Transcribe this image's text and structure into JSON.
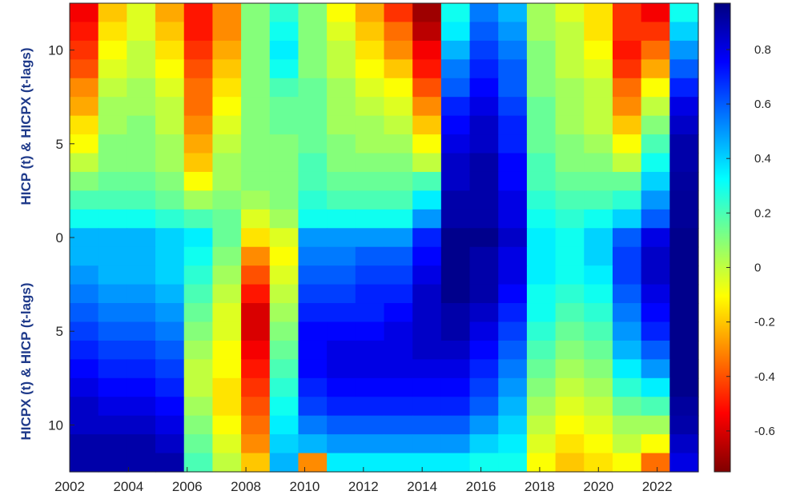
{
  "chart_data": {
    "type": "heatmap",
    "colormap": "jet",
    "x_ticks": [
      "2002",
      "2004",
      "2006",
      "2008",
      "2010",
      "2012",
      "2014",
      "2016",
      "2018",
      "2020",
      "2022"
    ],
    "xlim": [
      2002,
      2023.4
    ],
    "y_ticks_upper": [
      "10",
      "5",
      "0"
    ],
    "y_ticks_lower": [
      "5",
      "10"
    ],
    "ylabel_upper": "HICP (t) & HICPX (t-lags)",
    "ylabel_lower": "HICPX (t) & HICP (t-lags)",
    "colorbar": {
      "range": [
        -0.75,
        0.97
      ],
      "ticks": [
        "0.8",
        "0.6",
        "0.4",
        "0.2",
        "0",
        "-0.2",
        "-0.4",
        "-0.6"
      ]
    },
    "rows_upper_lags": [
      12,
      11,
      10,
      9,
      8,
      7,
      6,
      5,
      4,
      3,
      2,
      1,
      0
    ],
    "rows_lower_lags": [
      1,
      2,
      3,
      4,
      5,
      6,
      7,
      8,
      9,
      10,
      11,
      12
    ],
    "years": [
      2002,
      2003,
      2004,
      2005,
      2006,
      2007,
      2008,
      2009,
      2010,
      2011,
      2012,
      2013,
      2014,
      2015,
      2016,
      2017,
      2018,
      2019,
      2020,
      2021,
      2022,
      2023
    ],
    "values": [
      [
        -0.55,
        -0.2,
        -0.05,
        -0.25,
        -0.5,
        -0.3,
        0.1,
        0.25,
        0.1,
        -0.1,
        -0.25,
        -0.45,
        -0.7,
        0.3,
        0.55,
        0.45,
        0.05,
        -0.05,
        -0.15,
        -0.45,
        -0.55,
        0.3
      ],
      [
        -0.5,
        -0.15,
        -0.05,
        -0.2,
        -0.5,
        -0.3,
        0.1,
        0.3,
        0.1,
        -0.05,
        -0.2,
        -0.35,
        -0.65,
        0.35,
        0.6,
        0.5,
        0.05,
        0.0,
        -0.15,
        -0.45,
        -0.45,
        0.4
      ],
      [
        -0.45,
        -0.1,
        0.0,
        -0.15,
        -0.45,
        -0.25,
        0.1,
        0.35,
        0.1,
        0.0,
        -0.15,
        -0.3,
        -0.55,
        0.45,
        0.65,
        0.55,
        0.1,
        0.0,
        -0.1,
        -0.5,
        -0.35,
        0.5
      ],
      [
        -0.4,
        -0.05,
        0.0,
        -0.1,
        -0.4,
        -0.2,
        0.1,
        0.3,
        0.1,
        0.0,
        -0.1,
        -0.2,
        -0.5,
        0.55,
        0.7,
        0.6,
        0.1,
        0.0,
        -0.05,
        -0.45,
        -0.25,
        0.6
      ],
      [
        -0.3,
        0.0,
        0.05,
        -0.05,
        -0.35,
        -0.15,
        0.1,
        0.2,
        0.15,
        0.05,
        -0.05,
        -0.1,
        -0.4,
        0.6,
        0.75,
        0.6,
        0.1,
        0.05,
        0.0,
        -0.35,
        -0.1,
        0.7
      ],
      [
        -0.25,
        0.05,
        0.05,
        0.0,
        -0.35,
        -0.1,
        0.1,
        0.15,
        0.15,
        0.05,
        0.0,
        -0.05,
        -0.3,
        0.7,
        0.8,
        0.65,
        0.15,
        0.05,
        0.0,
        -0.3,
        0.0,
        0.8
      ],
      [
        -0.15,
        0.05,
        0.1,
        0.0,
        -0.3,
        -0.05,
        0.1,
        0.15,
        0.15,
        0.05,
        0.05,
        0.0,
        -0.2,
        0.75,
        0.85,
        0.7,
        0.15,
        0.05,
        0.0,
        -0.2,
        0.1,
        0.85
      ],
      [
        -0.1,
        0.1,
        0.1,
        0.05,
        -0.25,
        0.0,
        0.1,
        0.1,
        0.15,
        0.1,
        0.05,
        0.05,
        -0.1,
        0.8,
        0.85,
        0.7,
        0.15,
        0.1,
        0.05,
        -0.1,
        0.2,
        0.9
      ],
      [
        0.0,
        0.1,
        0.1,
        0.05,
        -0.2,
        0.05,
        0.1,
        0.1,
        0.2,
        0.1,
        0.1,
        0.1,
        0.0,
        0.85,
        0.9,
        0.75,
        0.2,
        0.1,
        0.1,
        0.0,
        0.3,
        0.9
      ],
      [
        0.1,
        0.15,
        0.15,
        0.1,
        -0.1,
        0.05,
        0.1,
        0.1,
        0.2,
        0.15,
        0.15,
        0.15,
        0.2,
        0.85,
        0.9,
        0.75,
        0.2,
        0.15,
        0.15,
        0.15,
        0.4,
        0.92
      ],
      [
        0.2,
        0.2,
        0.2,
        0.15,
        0.05,
        0.1,
        0.05,
        0.1,
        0.25,
        0.2,
        0.2,
        0.2,
        0.35,
        0.9,
        0.9,
        0.8,
        0.25,
        0.2,
        0.2,
        0.25,
        0.5,
        0.93
      ],
      [
        0.3,
        0.3,
        0.3,
        0.25,
        0.2,
        0.15,
        -0.05,
        0.05,
        0.3,
        0.3,
        0.3,
        0.3,
        0.5,
        0.9,
        0.9,
        0.8,
        0.3,
        0.25,
        0.3,
        0.4,
        0.6,
        0.93
      ],
      [
        0.45,
        0.45,
        0.45,
        0.4,
        0.35,
        0.15,
        -0.15,
        -0.05,
        0.5,
        0.5,
        0.5,
        0.5,
        0.7,
        0.95,
        0.95,
        0.85,
        0.35,
        0.3,
        0.4,
        0.6,
        0.8,
        0.95
      ],
      [
        0.45,
        0.45,
        0.45,
        0.4,
        0.3,
        0.1,
        -0.3,
        -0.1,
        0.55,
        0.55,
        0.6,
        0.6,
        0.75,
        0.95,
        0.9,
        0.8,
        0.35,
        0.3,
        0.4,
        0.65,
        0.85,
        0.95
      ],
      [
        0.5,
        0.45,
        0.45,
        0.4,
        0.25,
        0.05,
        -0.4,
        -0.05,
        0.6,
        0.6,
        0.65,
        0.65,
        0.8,
        0.95,
        0.9,
        0.8,
        0.35,
        0.3,
        0.35,
        0.65,
        0.85,
        0.95
      ],
      [
        0.55,
        0.5,
        0.5,
        0.45,
        0.2,
        0.0,
        -0.5,
        0.0,
        0.65,
        0.65,
        0.7,
        0.7,
        0.85,
        0.95,
        0.9,
        0.75,
        0.3,
        0.25,
        0.3,
        0.6,
        0.8,
        0.95
      ],
      [
        0.6,
        0.55,
        0.55,
        0.5,
        0.15,
        -0.05,
        -0.6,
        0.05,
        0.7,
        0.7,
        0.7,
        0.75,
        0.85,
        0.9,
        0.85,
        0.7,
        0.3,
        0.2,
        0.25,
        0.55,
        0.75,
        0.95
      ],
      [
        0.65,
        0.6,
        0.6,
        0.55,
        0.1,
        -0.05,
        -0.6,
        0.1,
        0.75,
        0.75,
        0.75,
        0.8,
        0.85,
        0.9,
        0.8,
        0.65,
        0.25,
        0.15,
        0.2,
        0.5,
        0.7,
        0.95
      ],
      [
        0.7,
        0.65,
        0.65,
        0.6,
        0.05,
        -0.1,
        -0.55,
        0.15,
        0.75,
        0.8,
        0.8,
        0.8,
        0.85,
        0.85,
        0.75,
        0.6,
        0.2,
        0.1,
        0.15,
        0.45,
        0.6,
        0.95
      ],
      [
        0.75,
        0.7,
        0.7,
        0.65,
        0.0,
        -0.1,
        -0.5,
        0.2,
        0.75,
        0.8,
        0.8,
        0.8,
        0.8,
        0.8,
        0.7,
        0.55,
        0.15,
        0.05,
        0.1,
        0.35,
        0.5,
        0.95
      ],
      [
        0.8,
        0.75,
        0.75,
        0.7,
        0.0,
        -0.15,
        -0.45,
        0.25,
        0.7,
        0.75,
        0.75,
        0.75,
        0.75,
        0.75,
        0.65,
        0.5,
        0.1,
        0.0,
        0.05,
        0.25,
        0.35,
        0.95
      ],
      [
        0.85,
        0.8,
        0.8,
        0.75,
        0.05,
        -0.15,
        -0.4,
        0.3,
        0.65,
        0.7,
        0.7,
        0.7,
        0.7,
        0.7,
        0.6,
        0.45,
        0.05,
        -0.05,
        0.0,
        0.15,
        0.2,
        0.92
      ],
      [
        0.85,
        0.85,
        0.85,
        0.8,
        0.1,
        -0.1,
        -0.35,
        0.35,
        0.55,
        0.6,
        0.6,
        0.6,
        0.6,
        0.6,
        0.5,
        0.4,
        0.0,
        -0.1,
        -0.05,
        0.05,
        0.05,
        0.9
      ],
      [
        0.9,
        0.9,
        0.9,
        0.85,
        0.15,
        -0.05,
        -0.3,
        0.4,
        0.45,
        0.5,
        0.5,
        0.5,
        0.5,
        0.5,
        0.4,
        0.35,
        -0.05,
        -0.15,
        -0.1,
        0.0,
        -0.1,
        0.85
      ],
      [
        0.9,
        0.9,
        0.9,
        0.9,
        0.2,
        0.0,
        -0.2,
        0.45,
        -0.3,
        0.35,
        0.35,
        0.35,
        0.35,
        0.35,
        0.3,
        0.3,
        -0.1,
        -0.2,
        -0.15,
        -0.1,
        -0.35,
        0.8
      ]
    ]
  }
}
